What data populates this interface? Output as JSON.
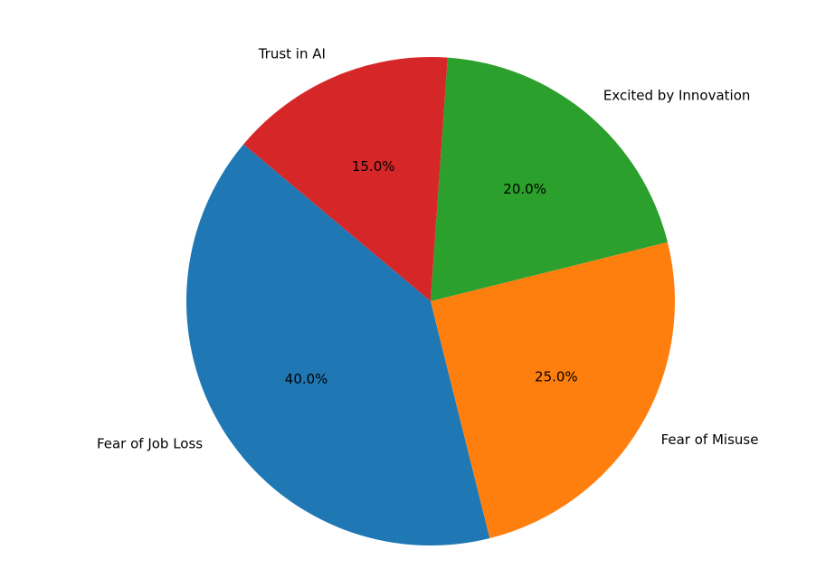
{
  "chart_data": {
    "type": "pie",
    "start_angle_deg": 140,
    "direction": "counterclockwise",
    "slices": [
      {
        "label": "Fear of Job Loss",
        "value": 40.0,
        "pct_text": "40.0%",
        "color": "#1f77b4"
      },
      {
        "label": "Fear of Misuse",
        "value": 25.0,
        "pct_text": "25.0%",
        "color": "#ff7f0e"
      },
      {
        "label": "Excited by Innovation",
        "value": 20.0,
        "pct_text": "20.0%",
        "color": "#2ca02c"
      },
      {
        "label": "Trust in AI",
        "value": 15.0,
        "pct_text": "15.0%",
        "color": "#d62728"
      }
    ]
  }
}
